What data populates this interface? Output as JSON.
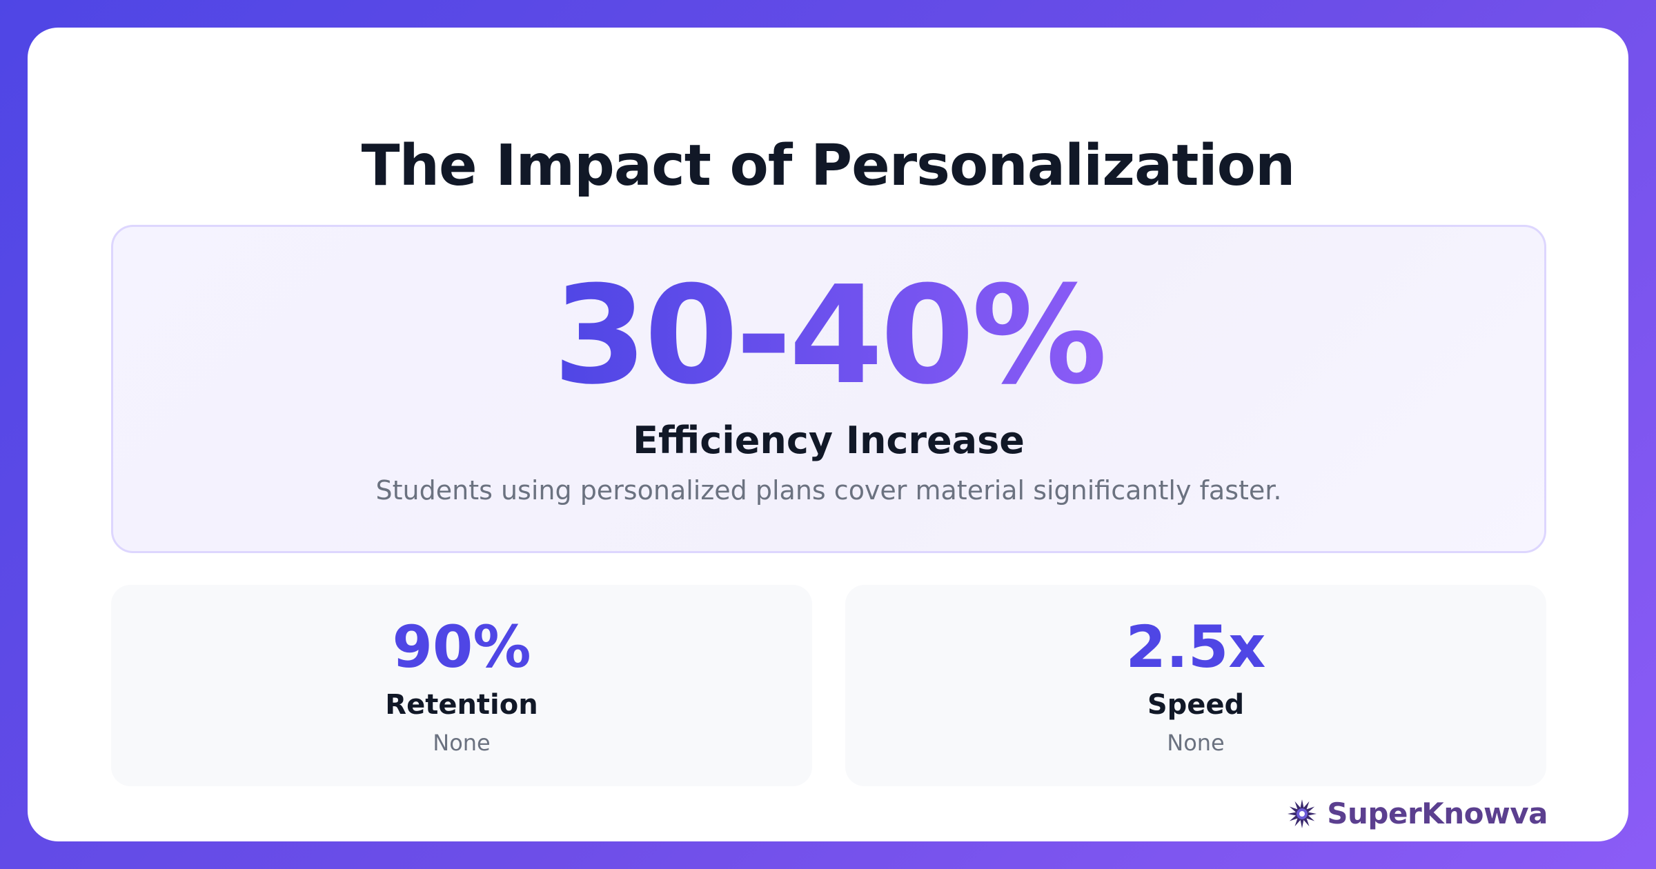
{
  "title": "The Impact of Personalization",
  "hero": {
    "value": "30-40%",
    "label": "Efficiency Increase",
    "description": "Students using personalized plans cover material significantly faster."
  },
  "stats": [
    {
      "value": "90%",
      "label": "Retention",
      "sub": "None"
    },
    {
      "value": "2.5x",
      "label": "Speed",
      "sub": "None"
    }
  ],
  "brand": {
    "name": "SuperKnowva",
    "logo_icon": "starburst-logo-icon"
  },
  "colors": {
    "accent": "#4f46e5",
    "accent_end": "#8b5cf6",
    "brand": "#5b3f8f",
    "heading": "#111827",
    "muted": "#6b7280"
  }
}
